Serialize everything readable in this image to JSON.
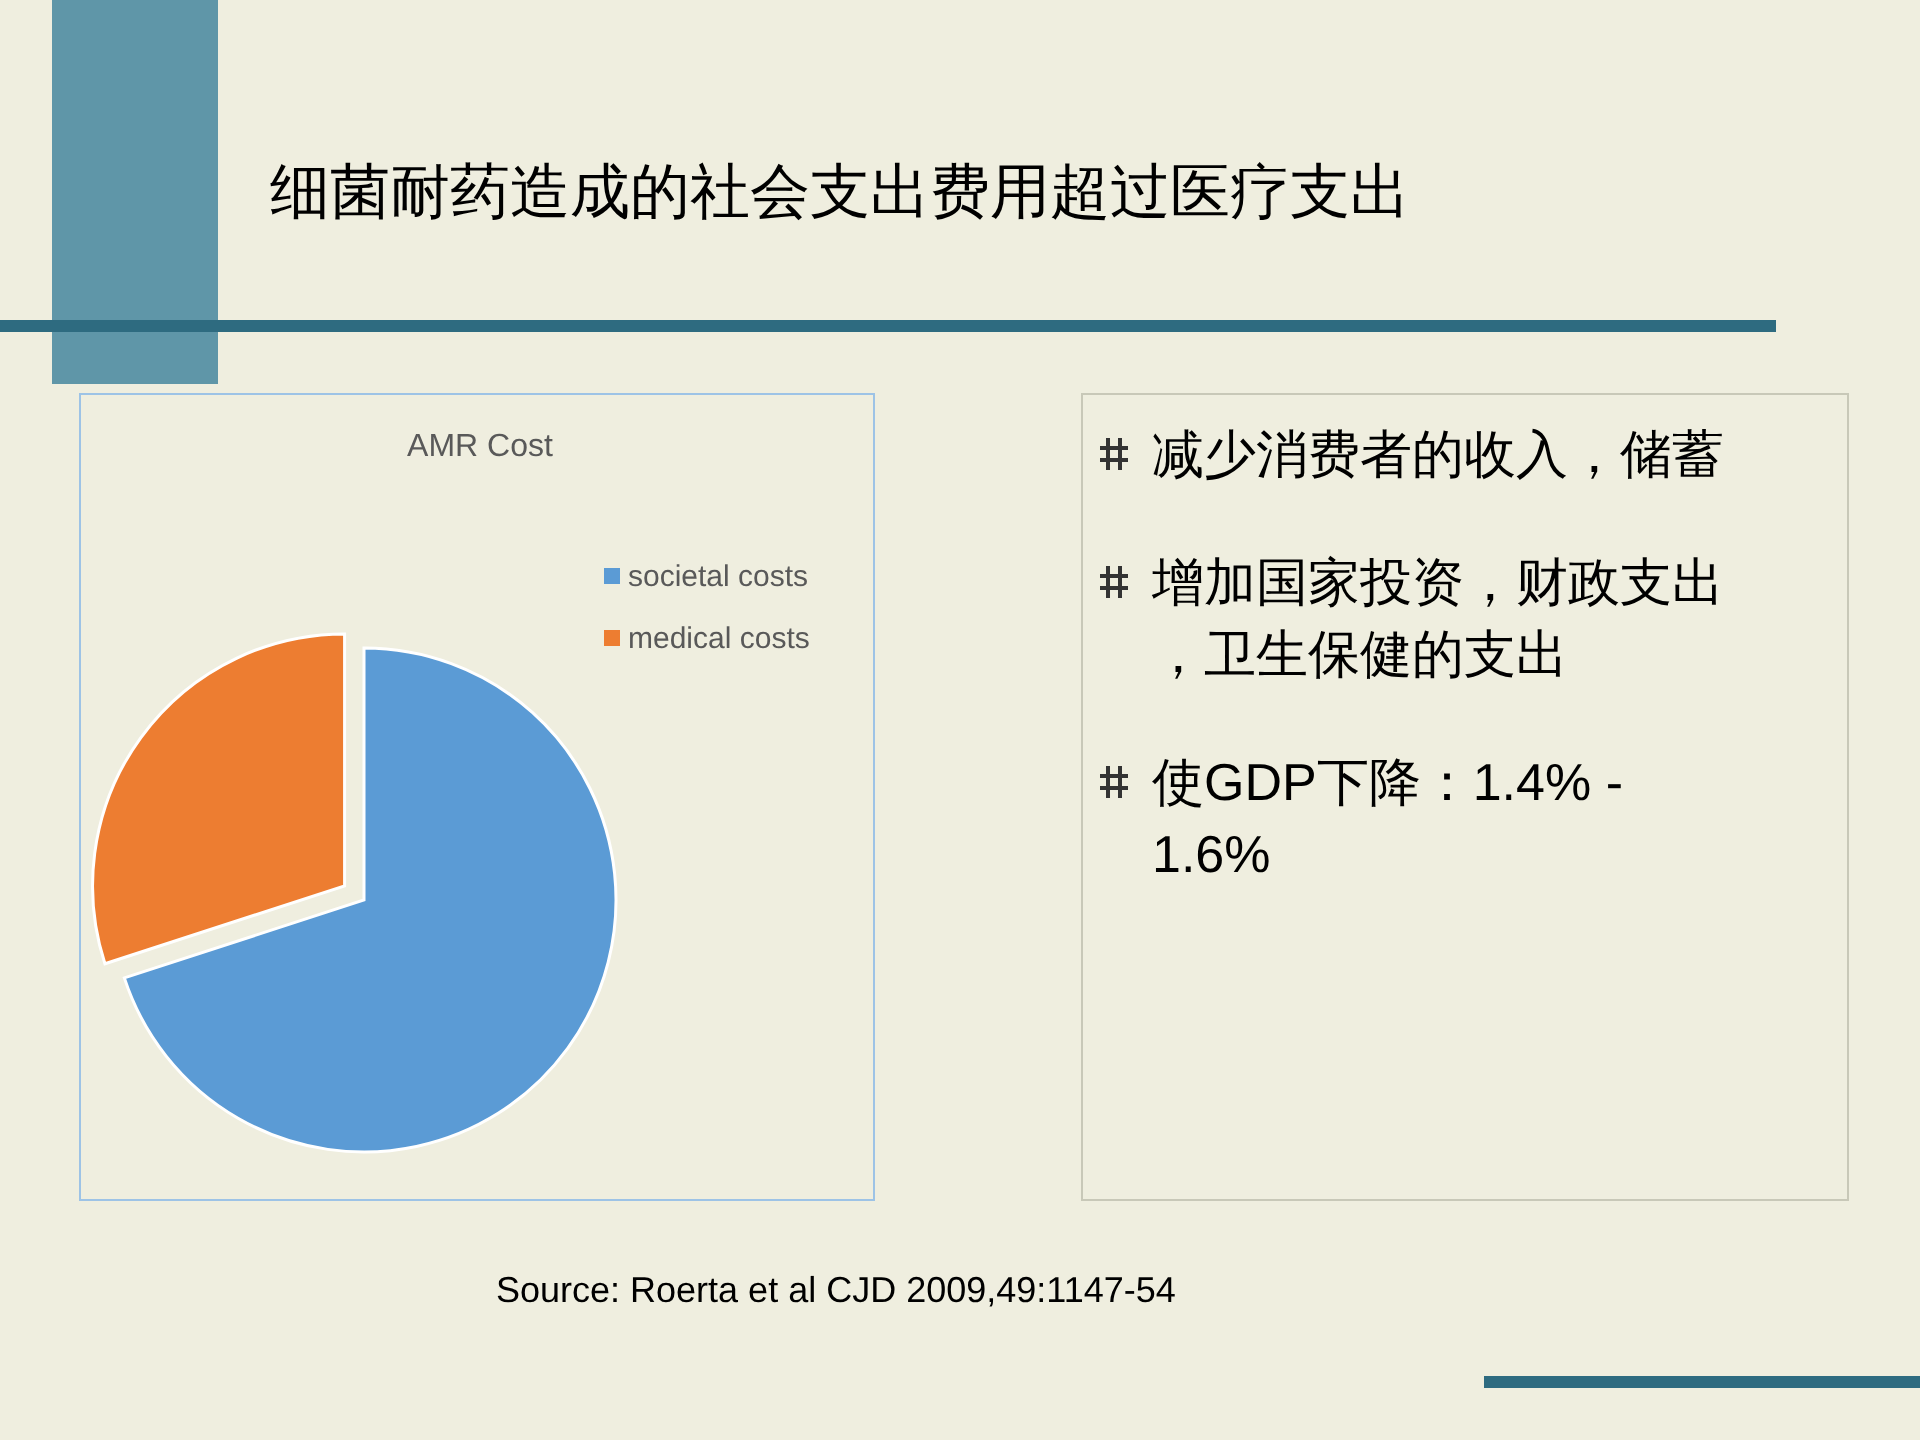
{
  "chart_data": [
    {
      "type": "pie",
      "title": "AMR Cost",
      "categories": [
        "societal costs",
        "medical costs"
      ],
      "values": [
        70,
        30
      ],
      "colors": [
        "#5b9bd5",
        "#ed7d31"
      ],
      "legend": "right",
      "annotations": [
        "Source: Roerta et al CJD 2009,49:1147-54"
      ]
    },
    {
      "type": "other",
      "title": "细菌耐药造成的社会支出费用超过医疗支出",
      "annotations": [
        "减少消费者的收入，储蓄",
        "增加国家投资，财政支出，卫生保健的支出",
        "使GDP下降：1.4% - 1.6%"
      ]
    }
  ]
}
